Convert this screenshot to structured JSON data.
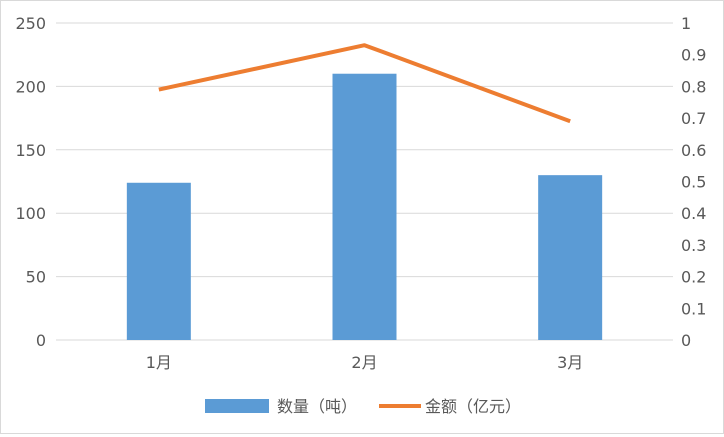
{
  "chart_data": {
    "type": "bar",
    "categories": [
      "1月",
      "2月",
      "3月"
    ],
    "series": [
      {
        "name": "数量（吨）",
        "type": "bar",
        "axis": "left",
        "color": "#5B9BD5",
        "values": [
          124,
          210,
          130
        ]
      },
      {
        "name": "金额（亿元）",
        "type": "line",
        "axis": "right",
        "color": "#ED7D31",
        "values": [
          0.79,
          0.93,
          0.69
        ]
      }
    ],
    "title": "",
    "xlabel": "",
    "ylabel": "",
    "y_left": {
      "min": 0,
      "max": 250,
      "ticks": [
        "0",
        "50",
        "100",
        "150",
        "200",
        "250"
      ]
    },
    "y_right": {
      "min": 0,
      "max": 1,
      "ticks": [
        "0",
        "0.1",
        "0.2",
        "0.3",
        "0.4",
        "0.5",
        "0.6",
        "0.7",
        "0.8",
        "0.9",
        "1"
      ]
    },
    "grid": true,
    "legend_position": "bottom"
  }
}
